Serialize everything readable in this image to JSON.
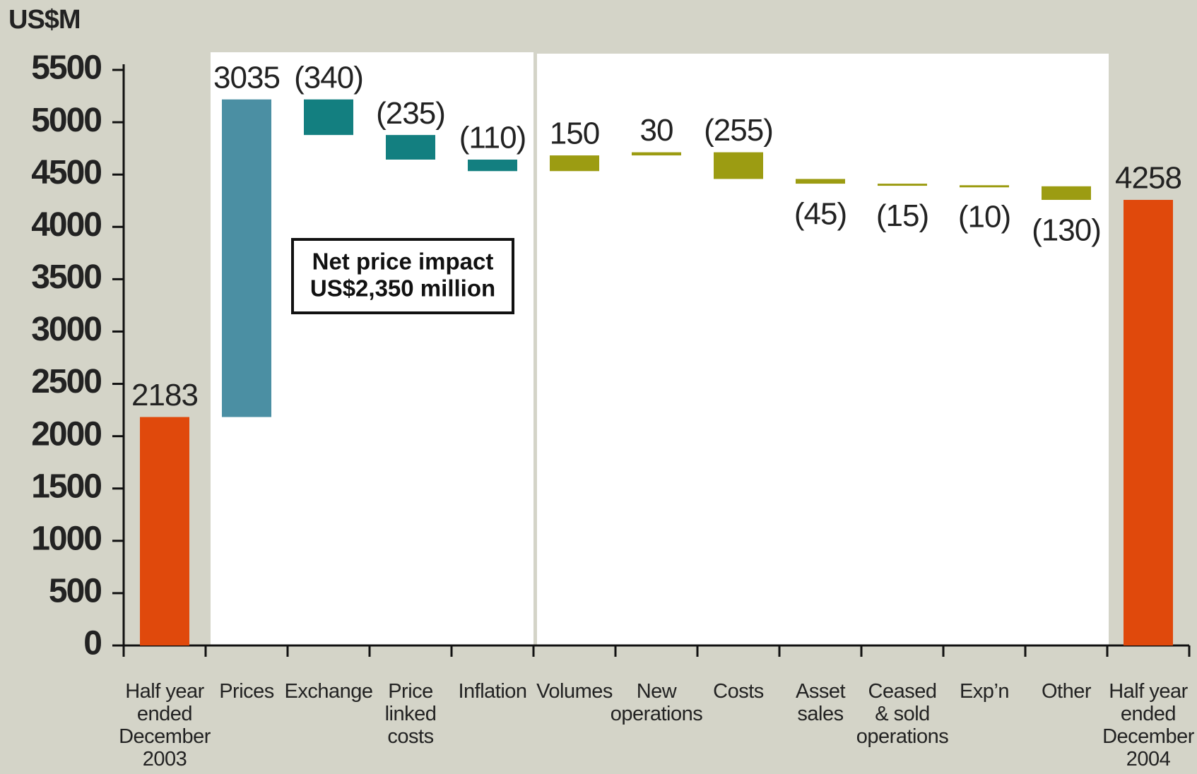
{
  "chart_data": {
    "type": "waterfall",
    "y_label": "US$M",
    "categories": [
      "Half year\nended\nDecember\n2003",
      "Prices",
      "Exchange",
      "Price\nlinked\ncosts",
      "Inflation",
      "Volumes",
      "New\noperations",
      "Costs",
      "Asset\nsales",
      "Ceased\n& sold\noperations",
      "Exp’n",
      "Other",
      "Half year\nended\nDecember\n2004"
    ],
    "values": [
      2183,
      3035,
      -340,
      -235,
      -110,
      150,
      30,
      -255,
      -45,
      -15,
      -10,
      -130,
      4258
    ],
    "value_labels": [
      "2183",
      "3035",
      "(340)",
      "(235)",
      "(110)",
      "150",
      "30",
      "(255)",
      "(45)",
      "(15)",
      "(10)",
      "(130)",
      "4258"
    ],
    "measure": [
      "absolute",
      "relative",
      "relative",
      "relative",
      "relative",
      "relative",
      "relative",
      "relative",
      "relative",
      "relative",
      "relative",
      "relative",
      "absolute"
    ],
    "colors": [
      "#e0490c",
      "#4b8fa3",
      "#137f80",
      "#137f80",
      "#137f80",
      "#9c9c12",
      "#9c9c12",
      "#9c9c12",
      "#9c9c12",
      "#9c9c12",
      "#9c9c12",
      "#9c9c12",
      "#e0490c"
    ],
    "annotation": [
      "Net price impact",
      "US$2,350 million"
    ],
    "ylim": [
      0,
      5500
    ],
    "yticks": [
      0,
      500,
      1000,
      1500,
      2000,
      2500,
      3000,
      3500,
      4000,
      4500,
      5000,
      5500
    ]
  }
}
